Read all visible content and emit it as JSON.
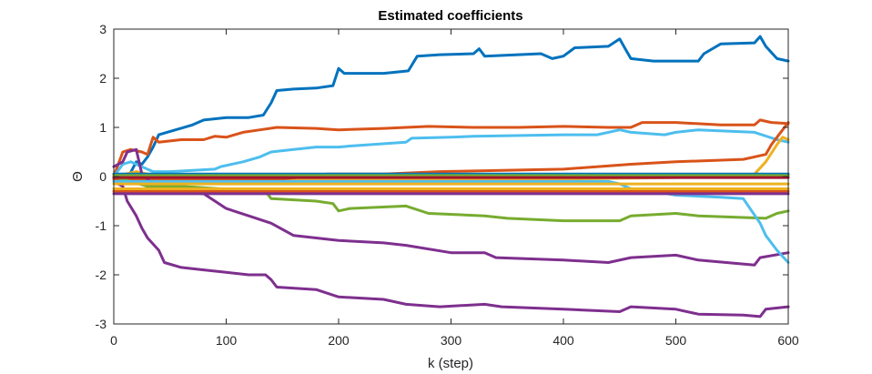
{
  "chart_data": {
    "type": "line",
    "title": "Estimated coefficients",
    "xlabel": "k (step)",
    "ylabel": "Θ",
    "xlim": [
      0,
      600
    ],
    "ylim": [
      -3,
      3
    ],
    "xticks": [
      0,
      100,
      200,
      300,
      400,
      500,
      600
    ],
    "yticks": [
      3,
      2,
      1,
      0,
      -1,
      -2,
      -3
    ],
    "grid": false,
    "series": [
      {
        "color": "#0072BD",
        "points": [
          [
            0,
            0
          ],
          [
            8,
            0.05
          ],
          [
            12,
            -0.05
          ],
          [
            20,
            0.3
          ],
          [
            25,
            0.25
          ],
          [
            30,
            0.4
          ],
          [
            35,
            0.6
          ],
          [
            40,
            0.85
          ],
          [
            55,
            0.95
          ],
          [
            70,
            1.05
          ],
          [
            80,
            1.15
          ],
          [
            100,
            1.2
          ],
          [
            120,
            1.2
          ],
          [
            133,
            1.25
          ],
          [
            140,
            1.5
          ],
          [
            145,
            1.75
          ],
          [
            160,
            1.78
          ],
          [
            180,
            1.8
          ],
          [
            195,
            1.85
          ],
          [
            200,
            2.2
          ],
          [
            205,
            2.1
          ],
          [
            240,
            2.1
          ],
          [
            262,
            2.15
          ],
          [
            270,
            2.45
          ],
          [
            290,
            2.48
          ],
          [
            320,
            2.5
          ],
          [
            325,
            2.6
          ],
          [
            330,
            2.45
          ],
          [
            380,
            2.5
          ],
          [
            390,
            2.4
          ],
          [
            400,
            2.45
          ],
          [
            410,
            2.62
          ],
          [
            440,
            2.65
          ],
          [
            450,
            2.8
          ],
          [
            455,
            2.6
          ],
          [
            460,
            2.4
          ],
          [
            480,
            2.35
          ],
          [
            520,
            2.35
          ],
          [
            525,
            2.5
          ],
          [
            540,
            2.7
          ],
          [
            570,
            2.72
          ],
          [
            575,
            2.85
          ],
          [
            580,
            2.65
          ],
          [
            590,
            2.4
          ],
          [
            600,
            2.35
          ]
        ]
      },
      {
        "color": "#D95319",
        "points": [
          [
            0,
            0
          ],
          [
            8,
            0.5
          ],
          [
            15,
            0.55
          ],
          [
            25,
            0.5
          ],
          [
            30,
            0.45
          ],
          [
            35,
            0.8
          ],
          [
            40,
            0.7
          ],
          [
            60,
            0.75
          ],
          [
            80,
            0.75
          ],
          [
            90,
            0.82
          ],
          [
            100,
            0.8
          ],
          [
            115,
            0.9
          ],
          [
            130,
            0.95
          ],
          [
            145,
            1.0
          ],
          [
            180,
            0.98
          ],
          [
            200,
            0.95
          ],
          [
            240,
            0.98
          ],
          [
            280,
            1.02
          ],
          [
            320,
            1.0
          ],
          [
            360,
            1.0
          ],
          [
            400,
            1.02
          ],
          [
            440,
            1.0
          ],
          [
            460,
            1.0
          ],
          [
            470,
            1.1
          ],
          [
            500,
            1.1
          ],
          [
            540,
            1.05
          ],
          [
            570,
            1.05
          ],
          [
            575,
            1.15
          ],
          [
            585,
            1.1
          ],
          [
            600,
            1.08
          ]
        ]
      },
      {
        "color": "#4DBEEE",
        "points": [
          [
            0,
            0
          ],
          [
            8,
            0.25
          ],
          [
            15,
            0.3
          ],
          [
            25,
            0.2
          ],
          [
            35,
            0.1
          ],
          [
            50,
            0.1
          ],
          [
            90,
            0.15
          ],
          [
            95,
            0.2
          ],
          [
            115,
            0.3
          ],
          [
            130,
            0.4
          ],
          [
            140,
            0.5
          ],
          [
            160,
            0.55
          ],
          [
            180,
            0.6
          ],
          [
            200,
            0.6
          ],
          [
            210,
            0.62
          ],
          [
            260,
            0.7
          ],
          [
            265,
            0.78
          ],
          [
            300,
            0.8
          ],
          [
            320,
            0.82
          ],
          [
            400,
            0.85
          ],
          [
            430,
            0.85
          ],
          [
            450,
            0.95
          ],
          [
            460,
            0.9
          ],
          [
            490,
            0.85
          ],
          [
            500,
            0.9
          ],
          [
            520,
            0.95
          ],
          [
            570,
            0.9
          ],
          [
            590,
            0.75
          ],
          [
            600,
            0.7
          ]
        ]
      },
      {
        "color": "#EDB120",
        "points": [
          [
            0,
            0
          ],
          [
            20,
            0.1
          ],
          [
            40,
            0
          ],
          [
            80,
            -0.05
          ],
          [
            200,
            -0.05
          ],
          [
            400,
            -0.05
          ],
          [
            500,
            -0.02
          ],
          [
            560,
            0
          ],
          [
            570,
            0.05
          ],
          [
            580,
            0.3
          ],
          [
            590,
            0.65
          ],
          [
            595,
            0.8
          ],
          [
            600,
            0.75
          ]
        ]
      },
      {
        "color": "#D95319",
        "points": [
          [
            0,
            -0.05
          ],
          [
            20,
            -0.05
          ],
          [
            100,
            -0.05
          ],
          [
            150,
            -0.05
          ],
          [
            190,
            0.05
          ],
          [
            240,
            0.05
          ],
          [
            290,
            0.1
          ],
          [
            400,
            0.15
          ],
          [
            460,
            0.25
          ],
          [
            500,
            0.3
          ],
          [
            560,
            0.35
          ],
          [
            580,
            0.45
          ],
          [
            585,
            0.65
          ],
          [
            590,
            0.8
          ],
          [
            600,
            1.1
          ]
        ]
      },
      {
        "color": "#7E2F8E",
        "points": [
          [
            0,
            -0.1
          ],
          [
            8,
            -0.2
          ],
          [
            12,
            -0.5
          ],
          [
            20,
            -0.8
          ],
          [
            25,
            -1.05
          ],
          [
            30,
            -1.25
          ],
          [
            40,
            -1.5
          ],
          [
            45,
            -1.75
          ],
          [
            60,
            -1.85
          ],
          [
            80,
            -1.9
          ],
          [
            100,
            -1.95
          ],
          [
            120,
            -2.0
          ],
          [
            135,
            -2.0
          ],
          [
            140,
            -2.1
          ],
          [
            145,
            -2.25
          ],
          [
            180,
            -2.3
          ],
          [
            200,
            -2.45
          ],
          [
            240,
            -2.5
          ],
          [
            260,
            -2.6
          ],
          [
            290,
            -2.65
          ],
          [
            330,
            -2.6
          ],
          [
            345,
            -2.65
          ],
          [
            400,
            -2.7
          ],
          [
            450,
            -2.75
          ],
          [
            460,
            -2.65
          ],
          [
            500,
            -2.7
          ],
          [
            520,
            -2.8
          ],
          [
            560,
            -2.82
          ],
          [
            575,
            -2.85
          ],
          [
            580,
            -2.7
          ],
          [
            600,
            -2.65
          ]
        ]
      },
      {
        "color": "#7E2F8E",
        "points": [
          [
            0,
            0.2
          ],
          [
            8,
            0.3
          ],
          [
            12,
            0.5
          ],
          [
            20,
            0.55
          ],
          [
            25,
            0.05
          ],
          [
            30,
            -0.05
          ],
          [
            40,
            -0.3
          ],
          [
            80,
            -0.35
          ],
          [
            100,
            -0.65
          ],
          [
            120,
            -0.8
          ],
          [
            140,
            -0.95
          ],
          [
            160,
            -1.2
          ],
          [
            180,
            -1.25
          ],
          [
            200,
            -1.3
          ],
          [
            240,
            -1.35
          ],
          [
            260,
            -1.4
          ],
          [
            300,
            -1.55
          ],
          [
            330,
            -1.55
          ],
          [
            340,
            -1.65
          ],
          [
            400,
            -1.7
          ],
          [
            440,
            -1.75
          ],
          [
            460,
            -1.65
          ],
          [
            500,
            -1.6
          ],
          [
            520,
            -1.7
          ],
          [
            570,
            -1.8
          ],
          [
            575,
            -1.65
          ],
          [
            600,
            -1.55
          ]
        ]
      },
      {
        "color": "#77AC30",
        "points": [
          [
            0,
            0
          ],
          [
            15,
            -0.1
          ],
          [
            30,
            -0.2
          ],
          [
            60,
            -0.2
          ],
          [
            130,
            -0.3
          ],
          [
            135,
            -0.3
          ],
          [
            140,
            -0.45
          ],
          [
            180,
            -0.5
          ],
          [
            195,
            -0.55
          ],
          [
            200,
            -0.7
          ],
          [
            210,
            -0.65
          ],
          [
            260,
            -0.6
          ],
          [
            280,
            -0.75
          ],
          [
            330,
            -0.8
          ],
          [
            350,
            -0.85
          ],
          [
            400,
            -0.9
          ],
          [
            450,
            -0.9
          ],
          [
            460,
            -0.8
          ],
          [
            500,
            -0.75
          ],
          [
            520,
            -0.8
          ],
          [
            580,
            -0.85
          ],
          [
            590,
            -0.75
          ],
          [
            600,
            -0.7
          ]
        ]
      },
      {
        "color": "#4DBEEE",
        "points": [
          [
            0,
            -0.1
          ],
          [
            20,
            -0.1
          ],
          [
            100,
            -0.1
          ],
          [
            200,
            -0.1
          ],
          [
            400,
            -0.1
          ],
          [
            440,
            -0.1
          ],
          [
            450,
            -0.15
          ],
          [
            460,
            -0.25
          ],
          [
            480,
            -0.3
          ],
          [
            500,
            -0.38
          ],
          [
            540,
            -0.42
          ],
          [
            560,
            -0.45
          ],
          [
            575,
            -0.95
          ],
          [
            580,
            -1.2
          ],
          [
            590,
            -1.5
          ],
          [
            600,
            -1.75
          ]
        ]
      },
      {
        "color": "#0072BD",
        "points": [
          [
            0,
            0.05
          ],
          [
            100,
            0.05
          ],
          [
            300,
            0.05
          ],
          [
            500,
            0.05
          ],
          [
            600,
            0.05
          ]
        ]
      },
      {
        "color": "#D95319",
        "points": [
          [
            0,
            -0.3
          ],
          [
            100,
            -0.3
          ],
          [
            300,
            -0.3
          ],
          [
            500,
            -0.3
          ],
          [
            600,
            -0.3
          ]
        ]
      },
      {
        "color": "#EDB120",
        "points": [
          [
            0,
            -0.15
          ],
          [
            100,
            -0.15
          ],
          [
            300,
            -0.15
          ],
          [
            500,
            -0.15
          ],
          [
            600,
            -0.15
          ]
        ]
      },
      {
        "color": "#7E2F8E",
        "points": [
          [
            0,
            -0.35
          ],
          [
            100,
            -0.35
          ],
          [
            300,
            -0.35
          ],
          [
            500,
            -0.35
          ],
          [
            600,
            -0.35
          ]
        ]
      },
      {
        "color": "#77AC30",
        "points": [
          [
            0,
            0.02
          ],
          [
            100,
            0.02
          ],
          [
            300,
            0.02
          ],
          [
            500,
            0.02
          ],
          [
            600,
            0.02
          ]
        ]
      },
      {
        "color": "#A2142F",
        "points": [
          [
            0,
            -0.02
          ],
          [
            100,
            -0.02
          ],
          [
            300,
            -0.02
          ],
          [
            500,
            -0.02
          ],
          [
            600,
            -0.02
          ]
        ]
      },
      {
        "color": "#EDB120",
        "points": [
          [
            0,
            -0.25
          ],
          [
            100,
            -0.25
          ],
          [
            300,
            -0.25
          ],
          [
            500,
            -0.25
          ],
          [
            600,
            -0.25
          ]
        ]
      }
    ]
  }
}
